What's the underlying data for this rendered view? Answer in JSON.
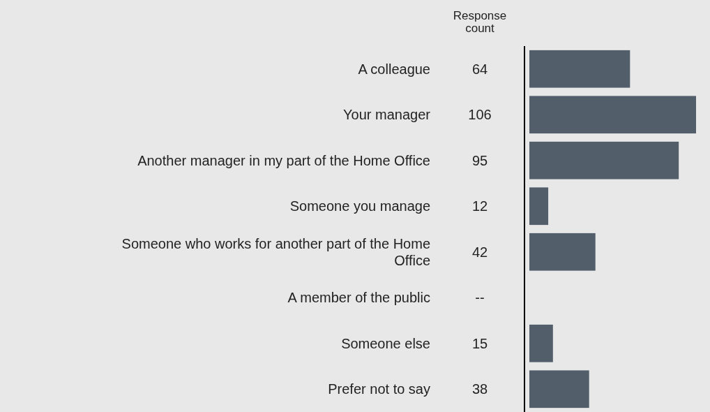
{
  "chart_data": {
    "type": "bar",
    "orientation": "horizontal",
    "categories": [
      "A colleague",
      "Your manager",
      "Another manager in my part of the Home Office",
      "Someone you manage",
      "Someone who works for another part of the Home Office",
      "A member of the public",
      "Someone else",
      "Prefer not to say"
    ],
    "values": [
      64,
      106,
      95,
      12,
      42,
      null,
      15,
      38
    ],
    "value_labels": [
      "64",
      "106",
      "95",
      "12",
      "42",
      "--",
      "15",
      "38"
    ],
    "color": "#525f6b",
    "annotations": [
      "Response count"
    ]
  }
}
